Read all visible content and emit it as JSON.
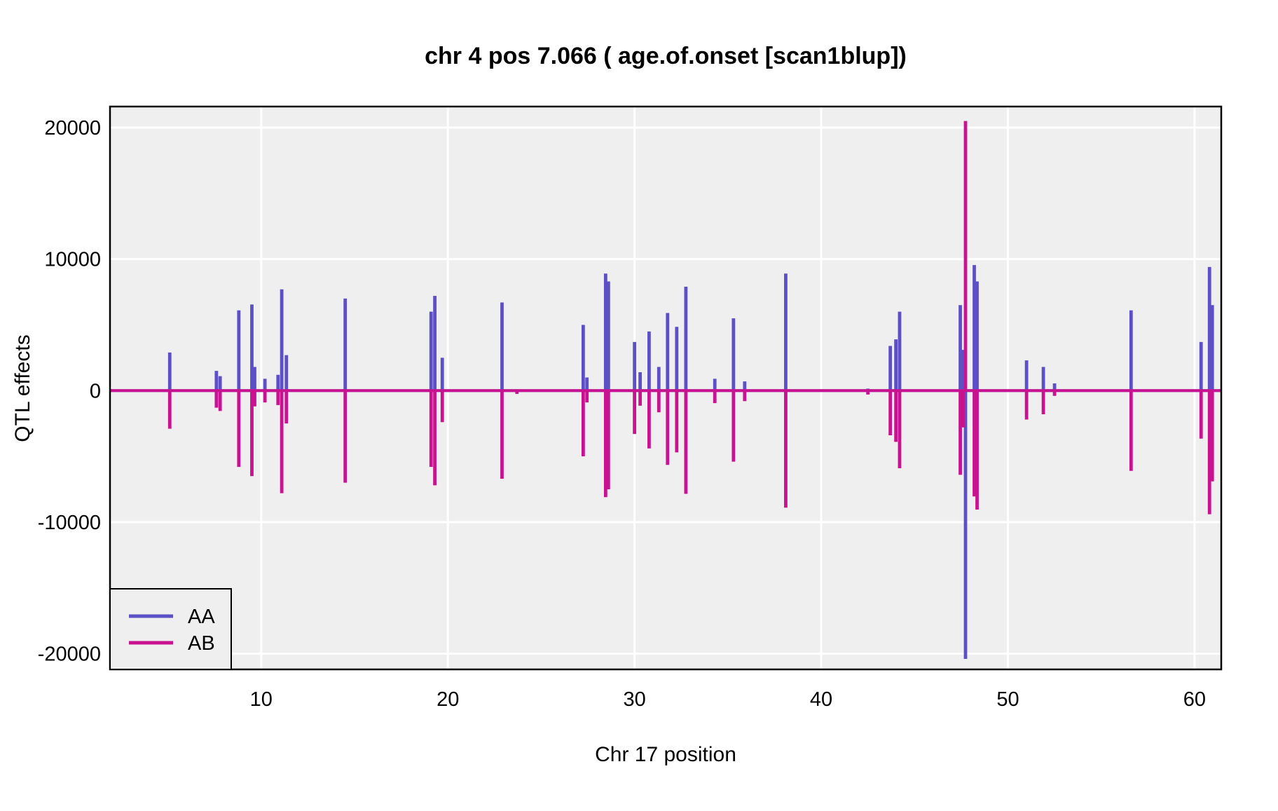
{
  "title": "chr 4 pos 7.066 ( age.of.onset  [scan1blup])",
  "axes": {
    "x_label": "Chr 17 position",
    "y_label": "QTL effects",
    "x_ticks": [
      10,
      20,
      30,
      40,
      50,
      60
    ],
    "y_ticks": [
      -20000,
      -10000,
      0,
      10000,
      20000
    ],
    "xlim": [
      1.9,
      61.43
    ],
    "ylim": [
      -21200,
      21600
    ],
    "grid": "white-on-grey"
  },
  "legend": {
    "position": "bottom-left",
    "entries": [
      {
        "label": "AA",
        "color": "#5D50C6"
      },
      {
        "label": "AB",
        "color": "#C9128F"
      }
    ]
  },
  "colors": {
    "panel_background": "#EFEFEF",
    "gridline": "#FFFFFF",
    "panel_border": "#000000",
    "aa_line": "#5D50C6",
    "ab_line": "#C9128F",
    "figure_background": "#FFFFFF",
    "text": "#000000"
  },
  "chart_data": {
    "type": "line",
    "description": "QTL effect spikes along chromosome; both series sit at 0 except sharp spikes",
    "title": "chr 4 pos 7.066 ( age.of.onset  [scan1blup])",
    "xlabel": "Chr 17 position",
    "ylabel": "QTL effects",
    "xlim": [
      1.9,
      61.43
    ],
    "ylim": [
      -21200,
      21600
    ],
    "baseline": 0,
    "series": [
      {
        "name": "AA",
        "color": "#5D50C6",
        "points": [
          [
            5.1,
            2900
          ],
          [
            7.6,
            1500
          ],
          [
            7.8,
            1100
          ],
          [
            8.8,
            6100
          ],
          [
            9.5,
            6550
          ],
          [
            9.65,
            1800
          ],
          [
            10.2,
            900
          ],
          [
            10.9,
            1200
          ],
          [
            11.1,
            7700
          ],
          [
            11.35,
            2700
          ],
          [
            14.5,
            7000
          ],
          [
            19.1,
            6000
          ],
          [
            19.3,
            7200
          ],
          [
            19.7,
            2500
          ],
          [
            22.9,
            6700
          ],
          [
            23.7,
            100
          ],
          [
            27.25,
            5000
          ],
          [
            27.45,
            1000
          ],
          [
            28.45,
            8900
          ],
          [
            28.6,
            8300
          ],
          [
            30.0,
            3700
          ],
          [
            30.3,
            1400
          ],
          [
            30.78,
            4500
          ],
          [
            31.3,
            1800
          ],
          [
            31.77,
            5900
          ],
          [
            32.26,
            4850
          ],
          [
            32.75,
            7900
          ],
          [
            34.3,
            900
          ],
          [
            35.3,
            5500
          ],
          [
            35.9,
            700
          ],
          [
            38.1,
            8900
          ],
          [
            42.5,
            150
          ],
          [
            43.7,
            3400
          ],
          [
            44.0,
            3900
          ],
          [
            44.2,
            6000
          ],
          [
            47.45,
            6500
          ],
          [
            47.6,
            3100
          ],
          [
            47.73,
            -20400
          ],
          [
            48.2,
            9550
          ],
          [
            48.35,
            8300
          ],
          [
            51.0,
            2300
          ],
          [
            51.9,
            1800
          ],
          [
            52.5,
            550
          ],
          [
            56.6,
            6100
          ],
          [
            60.35,
            3700
          ],
          [
            60.8,
            9400
          ],
          [
            60.95,
            6500
          ]
        ]
      },
      {
        "name": "AB",
        "color": "#C9128F",
        "points": [
          [
            5.1,
            -2900
          ],
          [
            7.6,
            -1300
          ],
          [
            7.8,
            -1550
          ],
          [
            8.8,
            -5800
          ],
          [
            9.5,
            -6500
          ],
          [
            9.65,
            -1200
          ],
          [
            10.2,
            -900
          ],
          [
            10.9,
            -1100
          ],
          [
            11.1,
            -7800
          ],
          [
            11.35,
            -2500
          ],
          [
            14.5,
            -7000
          ],
          [
            19.1,
            -5800
          ],
          [
            19.3,
            -7200
          ],
          [
            19.7,
            -2400
          ],
          [
            22.9,
            -6700
          ],
          [
            23.7,
            -250
          ],
          [
            27.25,
            -5000
          ],
          [
            27.45,
            -900
          ],
          [
            28.45,
            -8100
          ],
          [
            28.6,
            -7500
          ],
          [
            30.0,
            -3300
          ],
          [
            30.3,
            -1150
          ],
          [
            30.78,
            -4400
          ],
          [
            31.3,
            -1650
          ],
          [
            31.77,
            -5650
          ],
          [
            32.26,
            -4700
          ],
          [
            32.75,
            -7850
          ],
          [
            34.3,
            -950
          ],
          [
            35.3,
            -5400
          ],
          [
            35.9,
            -800
          ],
          [
            38.1,
            -8900
          ],
          [
            42.5,
            -300
          ],
          [
            43.7,
            -3400
          ],
          [
            44.0,
            -3900
          ],
          [
            44.2,
            -5900
          ],
          [
            47.45,
            -6400
          ],
          [
            47.6,
            -2800
          ],
          [
            47.73,
            20500
          ],
          [
            48.2,
            -8050
          ],
          [
            48.35,
            -9050
          ],
          [
            51.0,
            -2200
          ],
          [
            51.9,
            -1800
          ],
          [
            52.5,
            -400
          ],
          [
            56.6,
            -6100
          ],
          [
            60.35,
            -3650
          ],
          [
            60.8,
            -9400
          ],
          [
            60.95,
            -6900
          ]
        ]
      }
    ]
  }
}
